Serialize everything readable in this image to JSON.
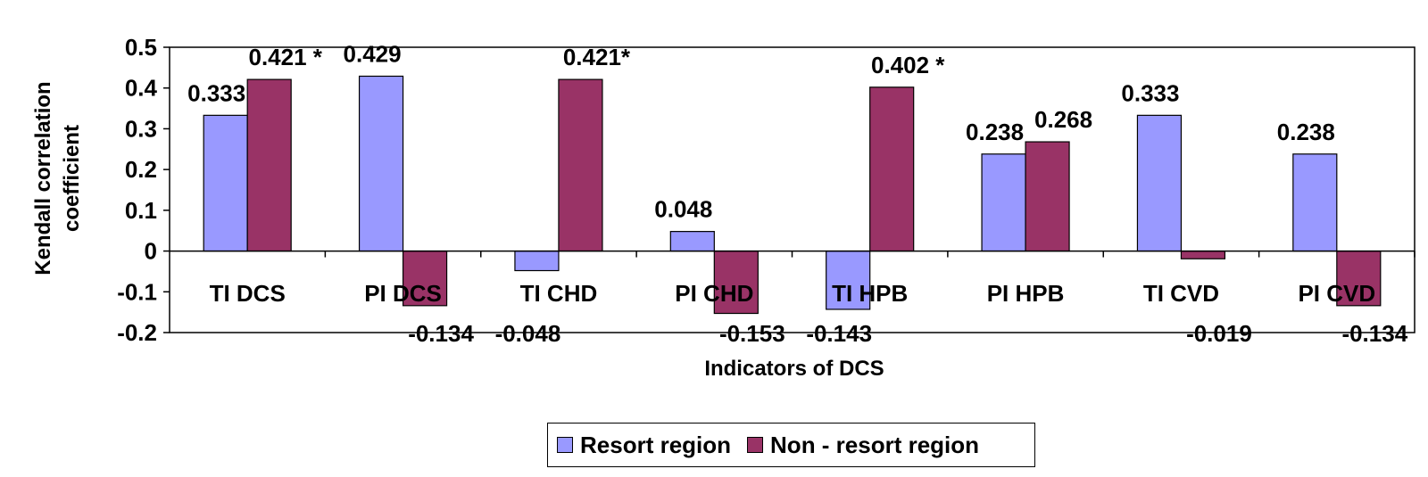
{
  "chart_data": {
    "type": "bar",
    "title": "",
    "xlabel": "Indicators of DCS",
    "ylabel": "Kendall correlation\ncoefficient",
    "ylim": [
      -0.2,
      0.5
    ],
    "yticks": [
      "0.5",
      "0.4",
      "0.3",
      "0.2",
      "0.1",
      "0",
      "-0.1",
      "-0.2"
    ],
    "categories": [
      "TI DCS",
      "PI DCS",
      "TI CHD",
      "PI CHD",
      "TI HPB",
      "PI HPB",
      "TI CVD",
      "PI CVD"
    ],
    "series": [
      {
        "name": "Resort region",
        "color": "#9999ff",
        "values": [
          0.333,
          0.429,
          -0.048,
          0.048,
          -0.143,
          0.238,
          0.333,
          0.238
        ],
        "labels": [
          "0.333",
          "0.429",
          "-0.048",
          "0.048",
          "-0.143",
          "0.238",
          "0.333",
          "0.238"
        ]
      },
      {
        "name": "Non - resort region",
        "color": "#993366",
        "values": [
          0.421,
          -0.134,
          0.421,
          -0.153,
          0.402,
          0.268,
          -0.019,
          -0.134
        ],
        "labels": [
          "0.421 *",
          "-0.134",
          "0.421*",
          "-0.153",
          "0.402 *",
          "0.268",
          "-0.019",
          "-0.134"
        ]
      }
    ],
    "grid": false,
    "legend": "bottom"
  }
}
